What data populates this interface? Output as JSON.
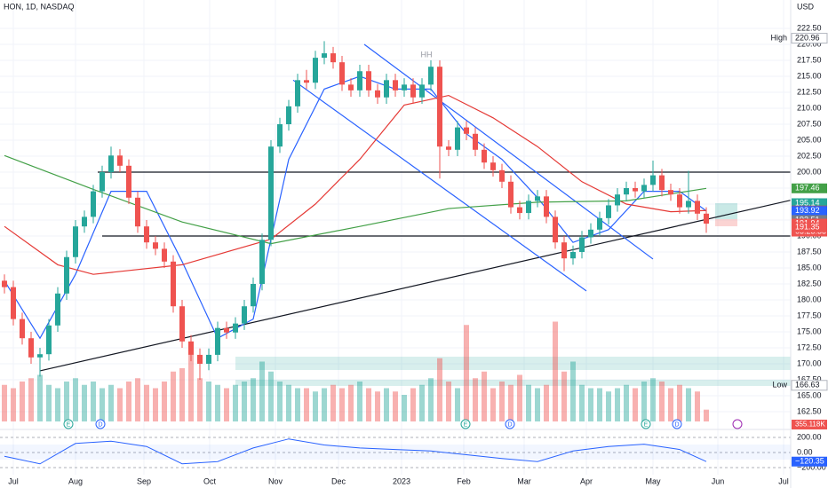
{
  "chart_data": {
    "type": "candlestick",
    "title": "HON, 1D, NASDAQ",
    "currency": "USD",
    "annotation": "HH",
    "up_color": "#26a69a",
    "down_color": "#ef5350",
    "grid": true,
    "x": [
      0,
      1,
      2,
      3,
      4,
      5,
      6,
      7,
      8,
      9,
      10,
      11,
      12,
      13,
      14,
      15,
      16,
      17,
      18,
      19,
      20,
      21,
      22,
      23,
      24,
      25,
      26,
      27,
      28,
      29,
      30,
      31,
      32,
      33,
      34,
      35,
      36,
      37,
      38,
      39,
      40,
      41,
      42,
      43,
      44,
      45,
      46,
      47,
      48,
      49,
      50,
      51,
      52,
      53,
      54,
      55,
      56,
      57,
      58,
      59,
      60,
      61,
      62,
      63,
      64,
      65,
      66,
      67,
      68,
      69,
      70,
      71,
      72,
      73,
      74,
      75,
      76,
      77,
      78,
      79
    ],
    "open": [
      183,
      182,
      177,
      174,
      171,
      171.5,
      176,
      181,
      186.7,
      191.5,
      193,
      197,
      200,
      202.6,
      201,
      196,
      191.5,
      189,
      188,
      186,
      179,
      173.5,
      171.4,
      170,
      171.4,
      175.6,
      174.9,
      176.3,
      179,
      182.5,
      189.4,
      204,
      207.5,
      210.3,
      214.4,
      214,
      217.9,
      218.6,
      217.2,
      213.7,
      212.8,
      215.8,
      212.8,
      211.7,
      214.4,
      212.8,
      213.7,
      211.7,
      213.7,
      216.5,
      204,
      203.5,
      207,
      206,
      203.5,
      201.5,
      200.3,
      198.5,
      194.5,
      193.6,
      195.5,
      196.2,
      193,
      189,
      186.5,
      187.5,
      189.8,
      191,
      192.8,
      194.8,
      196.5,
      197.5,
      197,
      198,
      199.5,
      197.2,
      196.5,
      194.5,
      195.5,
      193.5
    ],
    "high": [
      184,
      183,
      178,
      175,
      172.5,
      177,
      182,
      187.7,
      192.5,
      194,
      198,
      201,
      204,
      203.6,
      202,
      197,
      192.5,
      190,
      189,
      187,
      180,
      174.5,
      172.4,
      172.4,
      176.6,
      176.6,
      177.3,
      180,
      183.5,
      190.4,
      205,
      208.5,
      211.3,
      215.4,
      216,
      219,
      220.5,
      219.6,
      218.2,
      214.7,
      216.8,
      216.8,
      213.8,
      215.4,
      215.4,
      214.7,
      214.7,
      214.7,
      217.5,
      217.5,
      205,
      208,
      208,
      207,
      204.5,
      202.5,
      201.3,
      199.5,
      195.5,
      196.5,
      197.2,
      197.2,
      194,
      190,
      188.5,
      190.8,
      192,
      193.8,
      195.8,
      197.5,
      198.5,
      198.5,
      199,
      201.8,
      200.5,
      198.2,
      197.5,
      200.2,
      196.5,
      194.5
    ],
    "low": [
      181,
      176,
      173,
      170,
      168,
      170.5,
      175,
      180,
      185.7,
      190.5,
      192,
      196,
      199,
      200,
      195,
      190.5,
      188,
      187,
      185,
      178,
      172.5,
      170.4,
      167.5,
      169,
      170.4,
      173.9,
      173.9,
      175.3,
      178,
      181.5,
      188.4,
      203,
      206.5,
      209.3,
      213,
      213,
      216.9,
      216.2,
      212.7,
      211.8,
      211.8,
      211.8,
      210.7,
      210.7,
      211.8,
      211.8,
      210.7,
      210.7,
      212.7,
      199,
      202.5,
      202.5,
      205,
      202.5,
      200.5,
      199.3,
      197.5,
      193.5,
      192.6,
      192.6,
      194.5,
      192,
      188,
      184.5,
      185.5,
      186.5,
      188.8,
      190,
      191.8,
      193.8,
      195.5,
      196,
      196,
      197,
      196.2,
      195.5,
      193.5,
      193.5,
      192.5,
      190.5
    ],
    "close": [
      182,
      177,
      174,
      171,
      171.5,
      176,
      181,
      186.7,
      191.5,
      193,
      197,
      200,
      202.6,
      201,
      196,
      191.5,
      189,
      188,
      186,
      179,
      173.5,
      171.4,
      170,
      171.4,
      175.6,
      174.9,
      176.3,
      179,
      182.5,
      189.4,
      204,
      207.5,
      210.3,
      214.4,
      214,
      217.9,
      218.6,
      217.2,
      213.7,
      212.8,
      215.8,
      212.8,
      211.7,
      214.4,
      212.8,
      213.7,
      211.7,
      213.7,
      216.5,
      204,
      203.5,
      207,
      206,
      203.5,
      201.5,
      200.3,
      198.5,
      194.5,
      193.6,
      195.5,
      196.2,
      193,
      189,
      186.5,
      187.5,
      189.8,
      191,
      192.8,
      194.8,
      196.5,
      197.5,
      197,
      198,
      199.5,
      197.2,
      196.5,
      194.5,
      195.5,
      193.5,
      191.94
    ],
    "xlim": [
      -0.5,
      88.5
    ],
    "xticks": [
      {
        "value": 1.0,
        "label": "Jul"
      },
      {
        "value": 8.0,
        "label": "Aug"
      },
      {
        "value": 15.7,
        "label": "Sep"
      },
      {
        "value": 23.1,
        "label": "Oct"
      },
      {
        "value": 30.5,
        "label": "Nov"
      },
      {
        "value": 37.6,
        "label": "Dec"
      },
      {
        "value": 44.7,
        "label": "2023"
      },
      {
        "value": 51.7,
        "label": "Feb"
      },
      {
        "value": 58.5,
        "label": "Mar"
      },
      {
        "value": 65.5,
        "label": "Apr"
      },
      {
        "value": 73.0,
        "label": "May"
      },
      {
        "value": 80.3,
        "label": "Jun"
      },
      {
        "value": 87.7,
        "label": "Jul"
      }
    ],
    "ylim": [
      162.5,
      222.5
    ],
    "yticks": [
      {
        "value": 222.5,
        "label": "222.50"
      },
      {
        "value": 220,
        "label": "220.00"
      },
      {
        "value": 217.5,
        "label": "217.50"
      },
      {
        "value": 215,
        "label": "215.00"
      },
      {
        "value": 212.5,
        "label": "212.50"
      },
      {
        "value": 210,
        "label": "210.00"
      },
      {
        "value": 207.5,
        "label": "207.50"
      },
      {
        "value": 205,
        "label": "205.00"
      },
      {
        "value": 202.5,
        "label": "202.50"
      },
      {
        "value": 200,
        "label": "200.00"
      },
      {
        "value": 197.5,
        "label": "197.50"
      },
      {
        "value": 195,
        "label": "195.00"
      },
      {
        "value": 192.5,
        "label": "192.50"
      },
      {
        "value": 190,
        "label": "190.00"
      },
      {
        "value": 187.5,
        "label": "187.50"
      },
      {
        "value": 185,
        "label": "185.00"
      },
      {
        "value": 182.5,
        "label": "182.50"
      },
      {
        "value": 180,
        "label": "180.00"
      },
      {
        "value": 177.5,
        "label": "177.50"
      },
      {
        "value": 175,
        "label": "175.00"
      },
      {
        "value": 172.5,
        "label": "172.50"
      },
      {
        "value": 170,
        "label": "170.00"
      },
      {
        "value": 167.5,
        "label": "167.50"
      },
      {
        "value": 165,
        "label": "165.00"
      },
      {
        "value": 162.5,
        "label": "162.50"
      }
    ],
    "volume": {
      "ylim": [
        0,
        4000
      ],
      "last_label": "355.118K",
      "values": [
        1100,
        1000,
        1200,
        1300,
        1400,
        1100,
        1000,
        1200,
        1300,
        1100,
        1200,
        1000,
        1100,
        1000,
        1200,
        1300,
        1100,
        1000,
        1200,
        1500,
        1600,
        2000,
        1300,
        1200,
        1100,
        1000,
        1100,
        1200,
        1300,
        1800,
        1500,
        1200,
        1100,
        1000,
        1000,
        900,
        1000,
        1100,
        1000,
        1100,
        1200,
        1000,
        900,
        1000,
        900,
        800,
        1000,
        1100,
        1300,
        1900,
        1200,
        1000,
        2900,
        1300,
        1500,
        1000,
        1200,
        1100,
        1400,
        1100,
        1000,
        1100,
        3000,
        1500,
        1800,
        1100,
        1000,
        1000,
        900,
        1000,
        1100,
        1000,
        1200,
        1300,
        1200,
        1000,
        1100,
        1000,
        900,
        355.118
      ]
    },
    "lines": [
      {
        "color": "#2962ff",
        "x": [
          0,
          4,
          8,
          12,
          16,
          20,
          24,
          28,
          32,
          36,
          40,
          44,
          48,
          52,
          56,
          60,
          64,
          68,
          72,
          76,
          79
        ],
        "values": [
          183,
          174,
          184,
          197,
          197,
          186,
          174,
          177,
          202,
          213,
          215,
          213,
          213,
          206,
          202,
          196,
          189,
          191,
          197,
          197,
          193.92
        ]
      },
      {
        "color": "#e53935",
        "x": [
          0,
          6,
          10,
          20,
          30,
          35,
          40,
          45,
          50,
          55,
          60,
          65,
          70,
          75,
          79
        ],
        "values": [
          191.5,
          185.5,
          184,
          185.5,
          189.5,
          195,
          202,
          210.5,
          212,
          208.5,
          204,
          198.5,
          195,
          193.8,
          193.99
        ]
      },
      {
        "color": "#43a047",
        "x": [
          0,
          10,
          20,
          30,
          40,
          50,
          60,
          70,
          79
        ],
        "values": [
          202.6,
          197.3,
          192.2,
          188.8,
          191.5,
          194.3,
          195.3,
          195.5,
          197.46
        ]
      }
    ],
    "drawings": [
      {
        "color": "#131722",
        "x": [
          10.5,
          88.5
        ],
        "values": [
          200,
          200
        ]
      },
      {
        "color": "#131722",
        "x": [
          11,
          88.5
        ],
        "values": [
          190,
          190
        ]
      },
      {
        "color": "#131722",
        "x": [
          4,
          88.5
        ],
        "values": [
          168.9,
          195.6
        ]
      },
      {
        "color": "#2962ff",
        "x": [
          40.5,
          73
        ],
        "values": [
          220,
          186.4
        ]
      },
      {
        "color": "#2962ff",
        "x": [
          32.5,
          65.5
        ],
        "values": [
          214.4,
          181.4
        ]
      }
    ],
    "price_tags": [
      {
        "label": "High",
        "value": 220.96,
        "color": "#ffffff"
      },
      {
        "label": "Low",
        "value": 166.63,
        "color": "#ffffff"
      },
      {
        "value": 197.46,
        "color": "#43a047"
      },
      {
        "value": 195.14,
        "color": "#26a69a"
      },
      {
        "value": 193.99,
        "color": "#e53935"
      },
      {
        "value": 193.92,
        "color": "#2962ff"
      },
      {
        "value": 192.51,
        "color": "#787b86"
      },
      {
        "value": 191.94,
        "color": "#ef5350",
        "countdown": "05:25:38"
      },
      {
        "value": 191.35,
        "color": "#ef5350"
      }
    ],
    "events": [
      {
        "label": "E",
        "x": 7.2
      },
      {
        "label": "D",
        "x": 10.8
      },
      {
        "label": "E",
        "x": 51.9
      },
      {
        "label": "D",
        "x": 56.9
      },
      {
        "label": "E",
        "x": 72.2
      },
      {
        "label": "D",
        "x": 75.7
      }
    ],
    "oscillator": {
      "color": "#2962ff",
      "ylim": [
        -300,
        300
      ],
      "yticks": [
        {
          "value": 200,
          "label": "200.00"
        },
        {
          "value": 0,
          "label": "0.00"
        },
        {
          "value": -200,
          "label": "−200.00"
        }
      ],
      "x": [
        0,
        4,
        8,
        12,
        16,
        20,
        24,
        28,
        32,
        36,
        40,
        44,
        48,
        52,
        56,
        60,
        64,
        68,
        72,
        76,
        79
      ],
      "values": [
        -50,
        -150,
        120,
        150,
        80,
        -150,
        -120,
        60,
        180,
        100,
        60,
        40,
        20,
        -30,
        -80,
        -120,
        20,
        80,
        110,
        40,
        -120.35
      ],
      "last_label": "−120.35"
    }
  }
}
